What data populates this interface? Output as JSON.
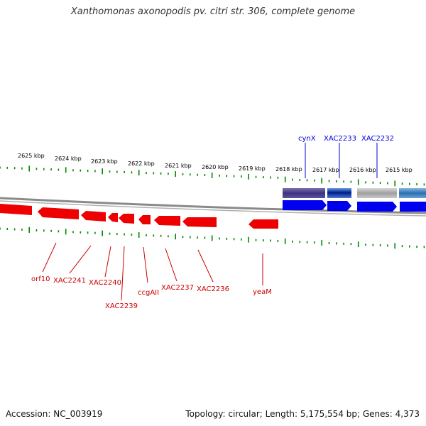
{
  "title": "Xanthomonas axonopodis pv. citri str. 306, complete genome",
  "kbp_labels": [
    "2625 kbp",
    "2624 kbp",
    "2623 kbp",
    "2622 kbp",
    "2621 kbp",
    "2620 kbp",
    "2619 kbp",
    "2618 kbp",
    "2617 kbp",
    "2616 kbp",
    "2615 kbp"
  ],
  "forward_gene_labels": [
    "cynX",
    "XAC2233",
    "XAC2232"
  ],
  "reverse_gene_labels": [
    "orf10",
    "XAC2241",
    "XAC2240",
    "XAC2239",
    "ccgAII",
    "XAC2237",
    "XAC2236",
    "yeaM"
  ],
  "colors": {
    "forward_strand": "#0000ee",
    "reverse_strand": "#ee0000",
    "ticks": "#008800",
    "backbone": "#808080"
  },
  "footer": {
    "accession": "Accession: NC_003919",
    "summary": "Topology: circular; Length: 5,175,554 bp; Genes: 4,373"
  }
}
